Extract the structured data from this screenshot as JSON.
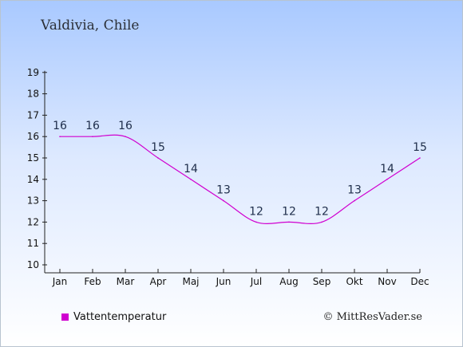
{
  "chart_data": {
    "type": "line",
    "title": "Valdivia, Chile",
    "categories": [
      "Jan",
      "Feb",
      "Mar",
      "Apr",
      "Maj",
      "Jun",
      "Jul",
      "Aug",
      "Sep",
      "Okt",
      "Nov",
      "Dec"
    ],
    "series": [
      {
        "name": "Vattentemperatur",
        "values": [
          16,
          16,
          16,
          15,
          14,
          13,
          12,
          12,
          12,
          13,
          14,
          15
        ],
        "color": "#d000d0"
      }
    ],
    "ylim": [
      10,
      19
    ],
    "yticks": [
      10,
      11,
      12,
      13,
      14,
      15,
      16,
      17,
      18,
      19
    ],
    "grid": false,
    "legend": "bottom-left"
  },
  "credit": "© MittResVader.se"
}
